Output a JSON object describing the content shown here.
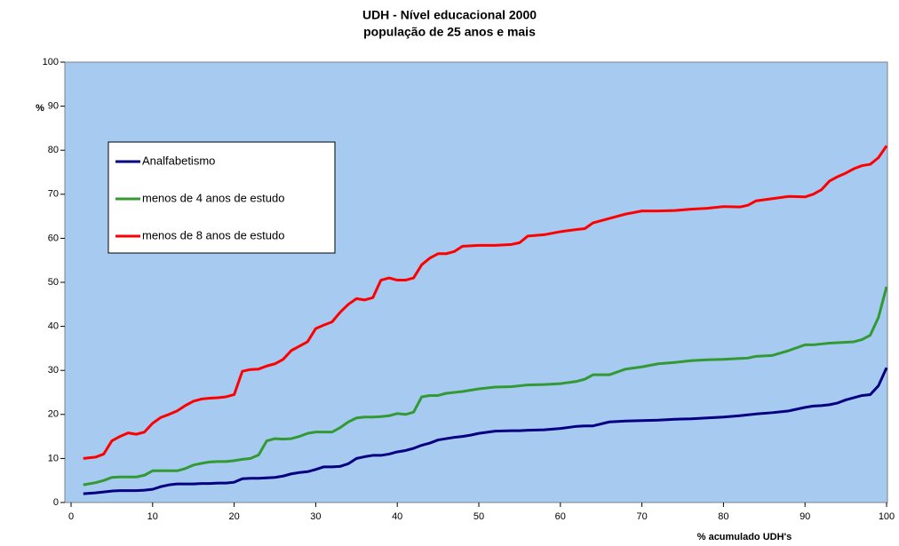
{
  "chart_data": {
    "type": "line",
    "title": "UDH - Nível educacional 2000",
    "subtitle": "população de 25 anos e mais",
    "y_label": "%",
    "x_label": "% acumulado UDH's",
    "x": [
      1.5,
      3,
      4,
      5,
      6,
      7,
      8,
      9,
      10,
      11,
      12,
      13,
      14,
      15,
      16,
      17,
      18,
      19,
      20,
      21,
      22,
      23,
      24,
      25,
      26,
      27,
      28,
      29,
      30,
      31,
      32,
      33,
      34,
      35,
      36,
      37,
      38,
      39,
      40,
      41,
      42,
      43,
      44,
      45,
      46,
      47,
      48,
      49,
      50,
      52,
      54,
      55,
      56,
      58,
      60,
      62,
      63,
      64,
      66,
      68,
      70,
      72,
      74,
      76,
      78,
      80,
      82,
      83,
      84,
      86,
      88,
      90,
      91,
      92,
      93,
      94,
      95,
      96,
      97,
      98,
      99,
      100
    ],
    "series": [
      {
        "name": "Analfabetismo",
        "color": "#000080",
        "values": [
          2,
          2.2,
          2.4,
          2.6,
          2.7,
          2.7,
          2.7,
          2.8,
          3,
          3.6,
          4,
          4.2,
          4.2,
          4.2,
          4.3,
          4.3,
          4.4,
          4.4,
          4.6,
          5.4,
          5.5,
          5.5,
          5.6,
          5.7,
          6,
          6.5,
          6.8,
          7,
          7.5,
          8.1,
          8.1,
          8.2,
          8.8,
          10,
          10.4,
          10.7,
          10.7,
          11,
          11.5,
          11.8,
          12.3,
          13,
          13.5,
          14.2,
          14.5,
          14.8,
          15,
          15.3,
          15.7,
          16.2,
          16.3,
          16.3,
          16.4,
          16.5,
          16.8,
          17.3,
          17.4,
          17.4,
          18.3,
          18.5,
          18.6,
          18.7,
          18.9,
          19,
          19.2,
          19.4,
          19.7,
          19.9,
          20.1,
          20.4,
          20.8,
          21.6,
          21.9,
          22,
          22.2,
          22.6,
          23.3,
          23.8,
          24.3,
          24.5,
          26.5,
          30.6
        ]
      },
      {
        "name": "menos de 4 anos de estudo",
        "color": "#339933",
        "values": [
          4,
          4.5,
          5,
          5.7,
          5.8,
          5.8,
          5.8,
          6.2,
          7.2,
          7.2,
          7.2,
          7.2,
          7.7,
          8.5,
          8.9,
          9.2,
          9.3,
          9.3,
          9.5,
          9.8,
          10,
          10.8,
          14,
          14.5,
          14.4,
          14.5,
          15,
          15.7,
          16,
          16,
          16,
          17,
          18.3,
          19.2,
          19.4,
          19.4,
          19.5,
          19.7,
          20.2,
          20,
          20.5,
          24,
          24.3,
          24.3,
          24.8,
          25,
          25.2,
          25.5,
          25.8,
          26.2,
          26.3,
          26.5,
          26.7,
          26.8,
          27,
          27.5,
          28,
          29,
          29,
          30.3,
          30.8,
          31.5,
          31.8,
          32.2,
          32.4,
          32.5,
          32.7,
          32.8,
          33.2,
          33.4,
          34.5,
          35.8,
          35.8,
          36,
          36.2,
          36.3,
          36.4,
          36.5,
          37,
          38,
          42,
          49
        ]
      },
      {
        "name": "menos de 8 anos de estudo",
        "color": "#ff0000",
        "values": [
          10,
          10.3,
          11,
          14,
          15,
          15.8,
          15.5,
          16,
          18,
          19.3,
          20,
          20.8,
          22,
          23,
          23.5,
          23.7,
          23.8,
          24,
          24.5,
          29.8,
          30.2,
          30.3,
          31,
          31.5,
          32.5,
          34.5,
          35.5,
          36.5,
          39.5,
          40.3,
          41,
          43.2,
          45,
          46.3,
          46,
          46.5,
          50.5,
          51,
          50.5,
          50.5,
          51,
          54,
          55.5,
          56.5,
          56.5,
          57,
          58.2,
          58.3,
          58.4,
          58.4,
          58.6,
          59,
          60.5,
          60.8,
          61.5,
          62,
          62.2,
          63.5,
          64.5,
          65.5,
          66.2,
          66.2,
          66.3,
          66.6,
          66.8,
          67.2,
          67.1,
          67.5,
          68.5,
          69,
          69.5,
          69.4,
          70,
          71,
          73,
          74,
          74.8,
          75.8,
          76.5,
          76.8,
          78.3,
          81
        ]
      }
    ],
    "xlim": [
      0,
      100
    ],
    "xticks": [
      0,
      10,
      20,
      30,
      40,
      50,
      60,
      70,
      80,
      90,
      100
    ],
    "ylim": [
      0,
      100
    ],
    "yticks": [
      0,
      10,
      20,
      30,
      40,
      50,
      60,
      70,
      80,
      90,
      100
    ],
    "legend": "upper left"
  }
}
